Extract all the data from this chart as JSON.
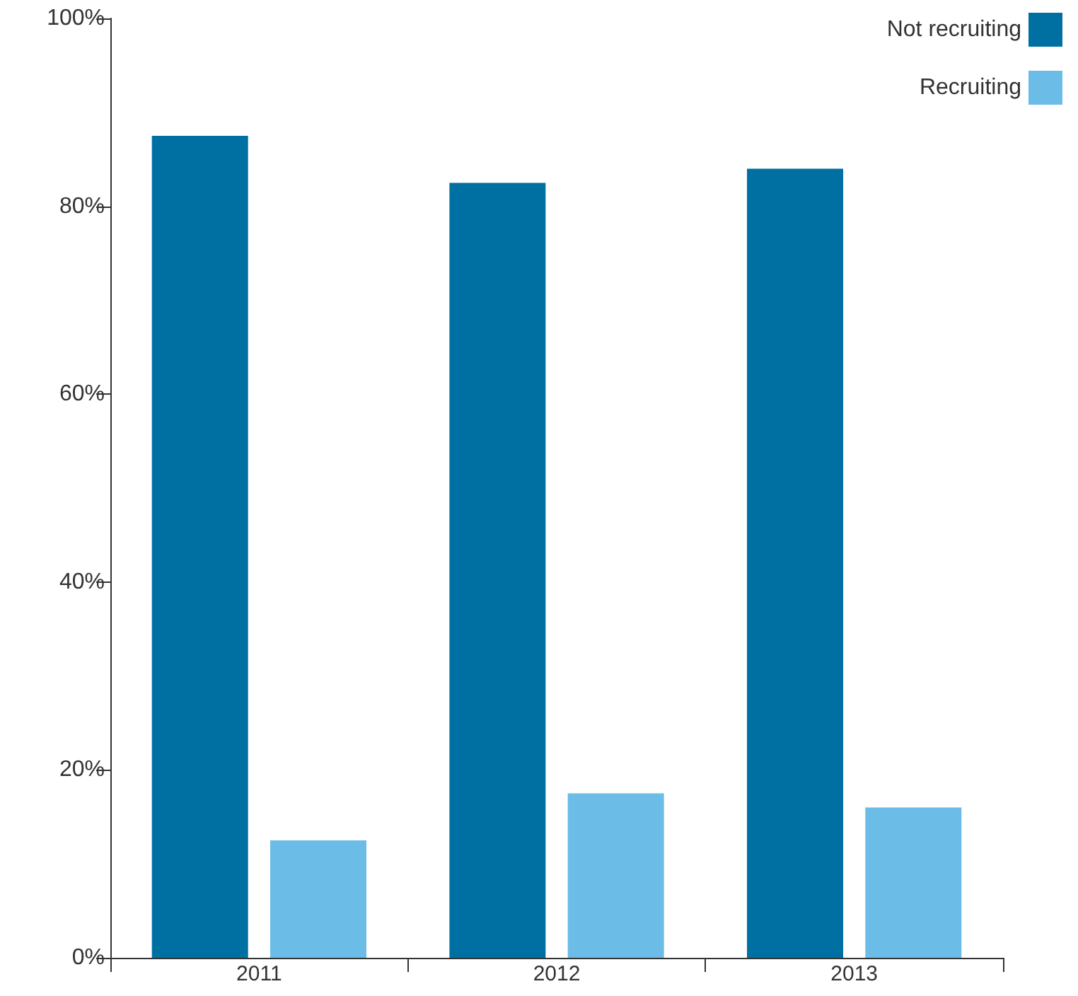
{
  "chart_data": {
    "type": "bar",
    "categories": [
      "2011",
      "2012",
      "2013"
    ],
    "series": [
      {
        "name": "Not recruiting",
        "color": "#0070a3",
        "values": [
          87.5,
          82.5,
          84
        ]
      },
      {
        "name": "Recruiting",
        "color": "#6bbce6",
        "values": [
          12.5,
          17.5,
          16
        ]
      }
    ],
    "ylim": [
      0,
      100
    ],
    "yticks": [
      {
        "value": 0,
        "label": "0%"
      },
      {
        "value": 20,
        "label": "20%"
      },
      {
        "value": 40,
        "label": "40%"
      },
      {
        "value": 60,
        "label": "60%"
      },
      {
        "value": 80,
        "label": "80%"
      },
      {
        "value": 100,
        "label": "100%"
      }
    ],
    "grid": false,
    "legend": "top right"
  }
}
